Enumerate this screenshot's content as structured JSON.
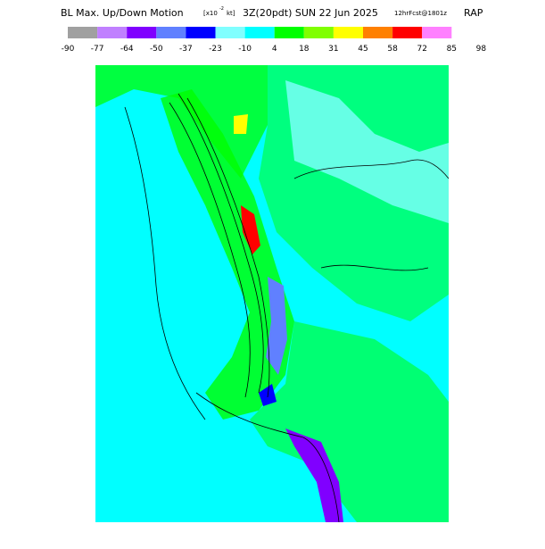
{
  "header": {
    "title": "BL Max. Up/Down Motion",
    "units_prefix": "[x10",
    "units_exponent": "-2",
    "units_suffix": "kt]",
    "valid_time": "3Z(20pdt) SUN 22 Jun 2025",
    "forecast": "12hrFcst@1801z",
    "model": "RAP"
  },
  "legend": {
    "colors": [
      "#a0a0a0",
      "#c080ff",
      "#8000ff",
      "#6080ff",
      "#0000ff",
      "#80ffff",
      "#00ffff",
      "#00ff00",
      "#80ff00",
      "#ffff00",
      "#ff8000",
      "#ff0000",
      "#ff80ff"
    ],
    "labels": [
      -90,
      -77,
      -64,
      -50,
      -37,
      -23,
      -10,
      4,
      18,
      31,
      45,
      58,
      72,
      85,
      98
    ]
  }
}
